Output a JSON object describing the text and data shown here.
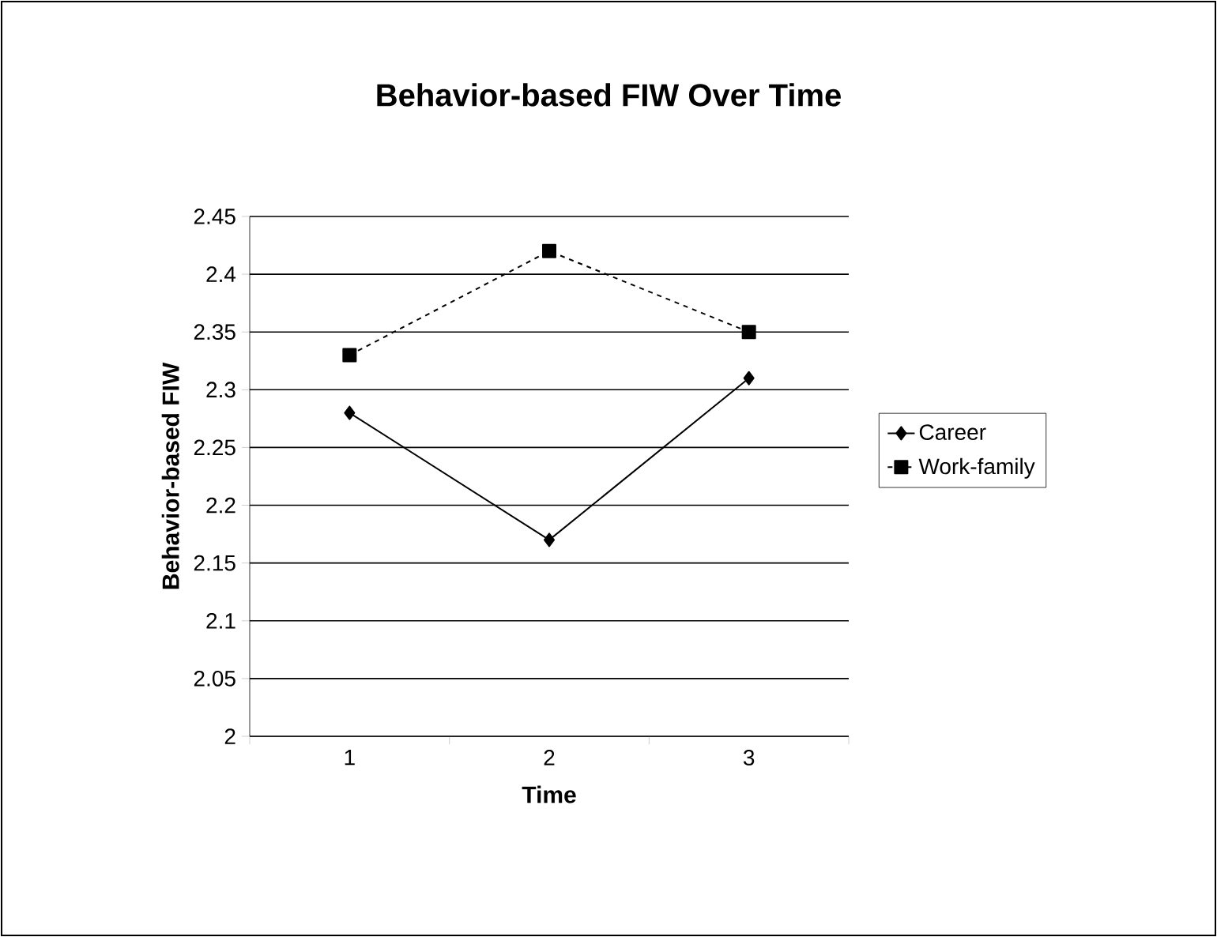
{
  "chart_data": {
    "type": "line",
    "title": "Behavior-based FIW Over Time",
    "xlabel": "Time",
    "ylabel": "Behavior-based FIW",
    "categories": [
      "1",
      "2",
      "3"
    ],
    "series": [
      {
        "name": "Career",
        "color": "#000000",
        "marker": "diamond",
        "line_style": "solid",
        "values": [
          2.28,
          2.17,
          2.31
        ]
      },
      {
        "name": "Work-family",
        "color": "#000000",
        "marker": "square",
        "line_style": "dashed",
        "values": [
          2.33,
          2.42,
          2.35
        ]
      }
    ],
    "ylim": [
      2,
      2.45
    ],
    "yticks": [
      2,
      2.05,
      2.1,
      2.15,
      2.2,
      2.25,
      2.3,
      2.35,
      2.4,
      2.45
    ],
    "grid": "y",
    "legend": "right"
  }
}
